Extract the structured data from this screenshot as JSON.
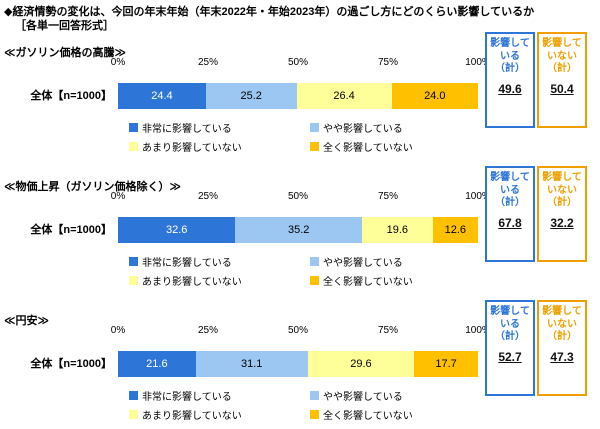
{
  "title": "◆経済情勢の変化は、今回の年末年始（年末2022年・年始2023年）の過ごし方にどのくらい影響しているか",
  "subtitle": "［各単一回答形式］",
  "axis_ticks": [
    "0%",
    "25%",
    "50%",
    "75%",
    "100%"
  ],
  "row_label": "全体【n=1000】",
  "legend": [
    {
      "label": "非常に影響している",
      "color": "#2E75D8"
    },
    {
      "label": "やや影響している",
      "color": "#9CC7F2"
    },
    {
      "label": "あまり影響していない",
      "color": "#FFFF99"
    },
    {
      "label": "全く影響していない",
      "color": "#FFC000"
    }
  ],
  "summary": {
    "yes_label": "影響して\nいる\n（計）",
    "no_label": "影響して\nいない\n（計）",
    "yes_color": "#2E75D8",
    "no_color": "#EFA000"
  },
  "charts": [
    {
      "section": "≪ガソリン価格の高騰≫",
      "values": [
        24.4,
        25.2,
        26.4,
        24.0
      ],
      "yes_total": "49.6",
      "no_total": "50.4"
    },
    {
      "section": "≪物価上昇（ガソリン価格除く）≫",
      "values": [
        32.6,
        35.2,
        19.6,
        12.6
      ],
      "yes_total": "67.8",
      "no_total": "32.2"
    },
    {
      "section": "≪円安≫",
      "values": [
        21.6,
        31.1,
        29.6,
        17.7
      ],
      "yes_total": "52.7",
      "no_total": "47.3"
    }
  ],
  "chart_data": [
    {
      "type": "bar",
      "stacked": true,
      "orientation": "horizontal",
      "title": "ガソリン価格の高騰",
      "categories": [
        "全体【n=1000】"
      ],
      "series": [
        {
          "name": "非常に影響している",
          "values": [
            24.4
          ]
        },
        {
          "name": "やや影響している",
          "values": [
            25.2
          ]
        },
        {
          "name": "あまり影響していない",
          "values": [
            26.4
          ]
        },
        {
          "name": "全く影響していない",
          "values": [
            24.0
          ]
        }
      ],
      "xlim": [
        0,
        100
      ],
      "x_ticks": [
        "0%",
        "25%",
        "50%",
        "75%",
        "100%"
      ],
      "legend_position": "bottom",
      "grid": false,
      "totals": {
        "影響している（計）": 49.6,
        "影響していない（計）": 50.4
      }
    },
    {
      "type": "bar",
      "stacked": true,
      "orientation": "horizontal",
      "title": "物価上昇（ガソリン価格除く）",
      "categories": [
        "全体【n=1000】"
      ],
      "series": [
        {
          "name": "非常に影響している",
          "values": [
            32.6
          ]
        },
        {
          "name": "やや影響している",
          "values": [
            35.2
          ]
        },
        {
          "name": "あまり影響していない",
          "values": [
            19.6
          ]
        },
        {
          "name": "全く影響していない",
          "values": [
            12.6
          ]
        }
      ],
      "xlim": [
        0,
        100
      ],
      "x_ticks": [
        "0%",
        "25%",
        "50%",
        "75%",
        "100%"
      ],
      "legend_position": "bottom",
      "grid": false,
      "totals": {
        "影響している（計）": 67.8,
        "影響していない（計）": 32.2
      }
    },
    {
      "type": "bar",
      "stacked": true,
      "orientation": "horizontal",
      "title": "円安",
      "categories": [
        "全体【n=1000】"
      ],
      "series": [
        {
          "name": "非常に影響している",
          "values": [
            21.6
          ]
        },
        {
          "name": "やや影響している",
          "values": [
            31.1
          ]
        },
        {
          "name": "あまり影響していない",
          "values": [
            29.6
          ]
        },
        {
          "name": "全く影響していない",
          "values": [
            17.7
          ]
        }
      ],
      "xlim": [
        0,
        100
      ],
      "x_ticks": [
        "0%",
        "25%",
        "50%",
        "75%",
        "100%"
      ],
      "legend_position": "bottom",
      "grid": false,
      "totals": {
        "影響している（計）": 52.7,
        "影響していない（計）": 47.3
      }
    }
  ]
}
